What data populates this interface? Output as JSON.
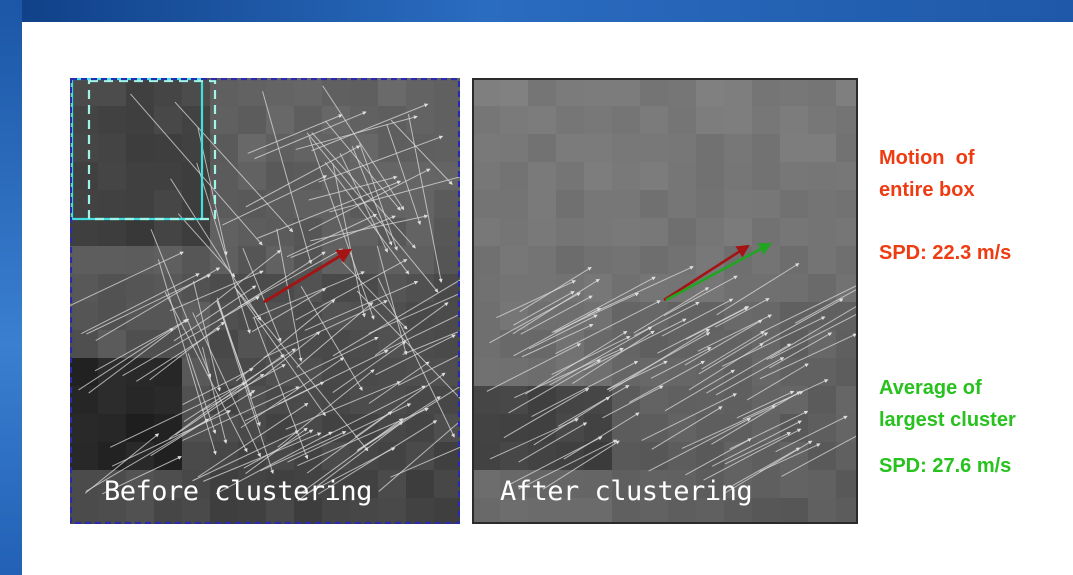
{
  "panels": {
    "before": {
      "caption": "Before clustering",
      "main_vector_color": "#a51414",
      "box_outline_color": "#2a2ab0",
      "highlight_colors": [
        "#40e0e0",
        "#9ff5e6"
      ]
    },
    "after": {
      "caption": "After clustering",
      "main_vector_color": "#a51414",
      "cluster_vector_color": "#1fa521"
    }
  },
  "legend": {
    "motion_label_line1": "Motion  of",
    "motion_label_line2": "entire box",
    "motion_speed": "SPD: 22.3 m/s",
    "motion_color": "#ee3b11",
    "average_label_line1": "Average of",
    "average_label_line2": "largest cluster",
    "average_speed": "SPD: 27.6 m/s",
    "average_color": "#27c21e"
  }
}
